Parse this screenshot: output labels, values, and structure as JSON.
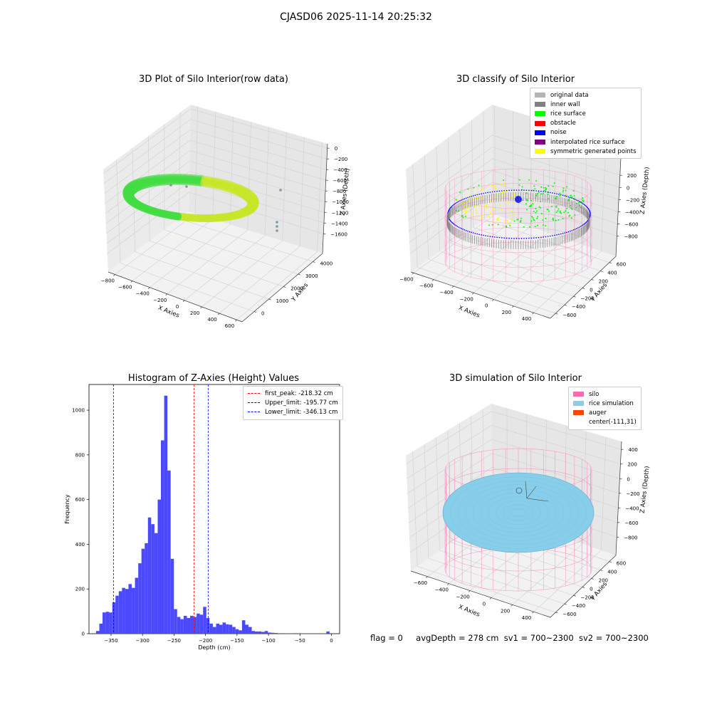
{
  "figure": {
    "suptitle": "CJASD06 2025-11-14 20:25:32",
    "status": {
      "flag": "flag = 0",
      "avg": "avgDepth = 278 cm",
      "sv1": "sv1 = 700~2300",
      "sv2": "sv2 = 700~2300"
    }
  },
  "chart_data": [
    {
      "type": "scatter",
      "projection": "3d",
      "title": "3D Plot of Silo Interior(row data)",
      "xlabel": "X Axies",
      "ylabel": "Y Axies",
      "zlabel": "Z Axies (Depth)",
      "xticks": [
        "−800",
        "−600",
        "−400",
        "−200",
        "0",
        "200",
        "400",
        "600"
      ],
      "yticks": [
        "0",
        "1000",
        "2000",
        "3000",
        "4000"
      ],
      "zticks": [
        "0",
        "−200",
        "−400",
        "−600",
        "−800",
        "−1000",
        "−1200",
        "−1400",
        "−1600"
      ],
      "colormap": [
        "#44dd44",
        "#c8e62a"
      ]
    },
    {
      "type": "scatter",
      "projection": "3d",
      "title": "3D classify of Silo Interior",
      "xlabel": "X Axies",
      "ylabel": "Y Axies",
      "zlabel": "Z Axies (Depth)",
      "xticks": [
        "−800",
        "−600",
        "−400",
        "−200",
        "0",
        "200",
        "400"
      ],
      "yticks": [
        "−600",
        "−400",
        "−200",
        "0",
        "200",
        "400",
        "600"
      ],
      "zticks": [
        "200",
        "0",
        "−200",
        "−400",
        "−600",
        "−800"
      ],
      "legend_position": "upper-right",
      "legend": [
        {
          "label": "original data",
          "color": "#b3b3b3"
        },
        {
          "label": "inner wall",
          "color": "#808080"
        },
        {
          "label": "rice surface",
          "color": "#00ff00"
        },
        {
          "label": "obstacle",
          "color": "#ff0000"
        },
        {
          "label": "noise",
          "color": "#0000ff"
        },
        {
          "label": "interpolated rice surface",
          "color": "#800080"
        },
        {
          "label": "symmetric generated points",
          "color": "#ffff00"
        }
      ]
    },
    {
      "type": "bar",
      "title": "Histogram of Z-Axies (Height) Values",
      "xlabel": "Depth (cm)",
      "ylabel": "Frequency",
      "xlim": [
        -385,
        13
      ],
      "ylim": [
        0,
        1115
      ],
      "xticks": [
        -350,
        -300,
        -250,
        -200,
        -150,
        -100,
        -50,
        0
      ],
      "yticks": [
        0,
        200,
        400,
        600,
        800,
        1000
      ],
      "bin_width": 5.15,
      "bar_color": "#4a4afc",
      "bins_start": [
        -373.8,
        -368.6,
        -363.5,
        -358.3,
        -353.2,
        -348.0,
        -342.9,
        -337.7,
        -332.6,
        -327.4,
        -322.3,
        -317.1,
        -312.0,
        -306.8,
        -301.7,
        -296.5,
        -291.4,
        -286.2,
        -281.1,
        -275.9,
        -270.8,
        -265.6,
        -260.5,
        -255.3,
        -250.2,
        -245.0,
        -239.9,
        -234.7,
        -229.6,
        -224.4,
        -219.3,
        -214.1,
        -209.0,
        -203.8,
        -198.7,
        -193.5,
        -188.4,
        -183.2,
        -178.1,
        -172.9,
        -167.8,
        -162.6,
        -157.5,
        -152.3,
        -147.2,
        -142.0,
        -136.9,
        -131.7,
        -126.6,
        -121.4,
        -116.3,
        -111.1,
        -106.0,
        -100.8,
        -95.7,
        -90.5,
        -85.4,
        -80.2,
        -75.1,
        -69.9,
        -64.8,
        -59.6,
        -54.5,
        -49.3,
        -44.2,
        -39.0,
        -33.9,
        -28.7,
        -23.6,
        -18.4,
        -13.3,
        -8.1,
        -3.0
      ],
      "values": [
        12,
        45,
        95,
        98,
        95,
        140,
        170,
        190,
        205,
        200,
        222,
        205,
        250,
        315,
        380,
        405,
        520,
        490,
        450,
        600,
        865,
        1065,
        730,
        335,
        110,
        75,
        65,
        80,
        70,
        80,
        75,
        90,
        85,
        120,
        70,
        45,
        30,
        45,
        40,
        50,
        42,
        40,
        30,
        20,
        15,
        60,
        40,
        30,
        12,
        10,
        10,
        8,
        12,
        5,
        4,
        3,
        2,
        2,
        1,
        1,
        1,
        2,
        1,
        1,
        1,
        1,
        1,
        1,
        1,
        1,
        1,
        10,
        0
      ],
      "vlines": [
        {
          "x": -218.32,
          "color": "#ff0000",
          "label": "first_peak: -218.32 cm"
        },
        {
          "x": -195.77,
          "color": "#0000ff",
          "label": "Upper_limit: -195.77 cm"
        },
        {
          "x": -346.13,
          "color": "#0000ff",
          "label": "Lower_limit: -346.13 cm"
        }
      ],
      "legend_position": "upper-right"
    },
    {
      "type": "scatter",
      "projection": "3d",
      "title": "3D simulation of Silo Interior",
      "xlabel": "X Axies",
      "ylabel": "Y Axies",
      "zlabel": "Z Axies (Depth)",
      "xticks": [
        "−600",
        "−400",
        "−200",
        "0",
        "200",
        "400"
      ],
      "yticks": [
        "−600",
        "−400",
        "−200",
        "0",
        "200",
        "400",
        "600"
      ],
      "zticks": [
        "400",
        "200",
        "0",
        "−200",
        "−400",
        "−600",
        "−800"
      ],
      "legend_position": "upper-right",
      "legend": [
        {
          "label": "silo",
          "color": "#ff69b4"
        },
        {
          "label": "rice simulation",
          "color": "#87ceeb"
        },
        {
          "label": "auger",
          "color": "#ff4500"
        },
        {
          "label": "center(-111,31)",
          "color": ""
        }
      ]
    }
  ]
}
